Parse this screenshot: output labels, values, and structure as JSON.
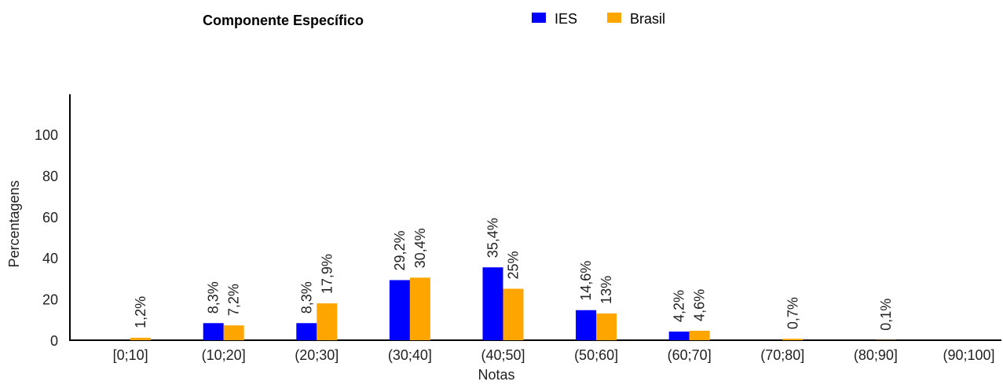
{
  "chart_data": {
    "type": "bar",
    "title": "Componente Específico",
    "xlabel": "Notas",
    "ylabel": "Percentagens",
    "categories": [
      "[0;10]",
      "(10;20]",
      "(20;30]",
      "(30;40]",
      "(40;50]",
      "(50;60]",
      "(60;70]",
      "(70;80]",
      "(80;90]",
      "(90;100]"
    ],
    "series": [
      {
        "name": "IES",
        "color": "#0000ff",
        "values": [
          0,
          8.3,
          8.3,
          29.2,
          35.4,
          14.6,
          4.2,
          0,
          0,
          0
        ],
        "labels": [
          "",
          "8,3%",
          "8,3%",
          "29,2%",
          "35,4%",
          "14,6%",
          "4,2%",
          "",
          "",
          ""
        ]
      },
      {
        "name": "Brasil",
        "color": "#ffa500",
        "values": [
          1.2,
          7.2,
          17.9,
          30.4,
          25,
          13,
          4.6,
          0.7,
          0.1,
          0
        ],
        "labels": [
          "1,2%",
          "7,2%",
          "17,9%",
          "30,4%",
          "25%",
          "13%",
          "4,6%",
          "0,7%",
          "0,1%",
          ""
        ]
      }
    ],
    "yticks": [
      "0",
      "20",
      "40",
      "60",
      "80",
      "100"
    ],
    "ytick_values": [
      0,
      20,
      40,
      60,
      80,
      100
    ],
    "ylim": [
      0,
      120
    ],
    "grid": false,
    "legend_position": "top"
  }
}
